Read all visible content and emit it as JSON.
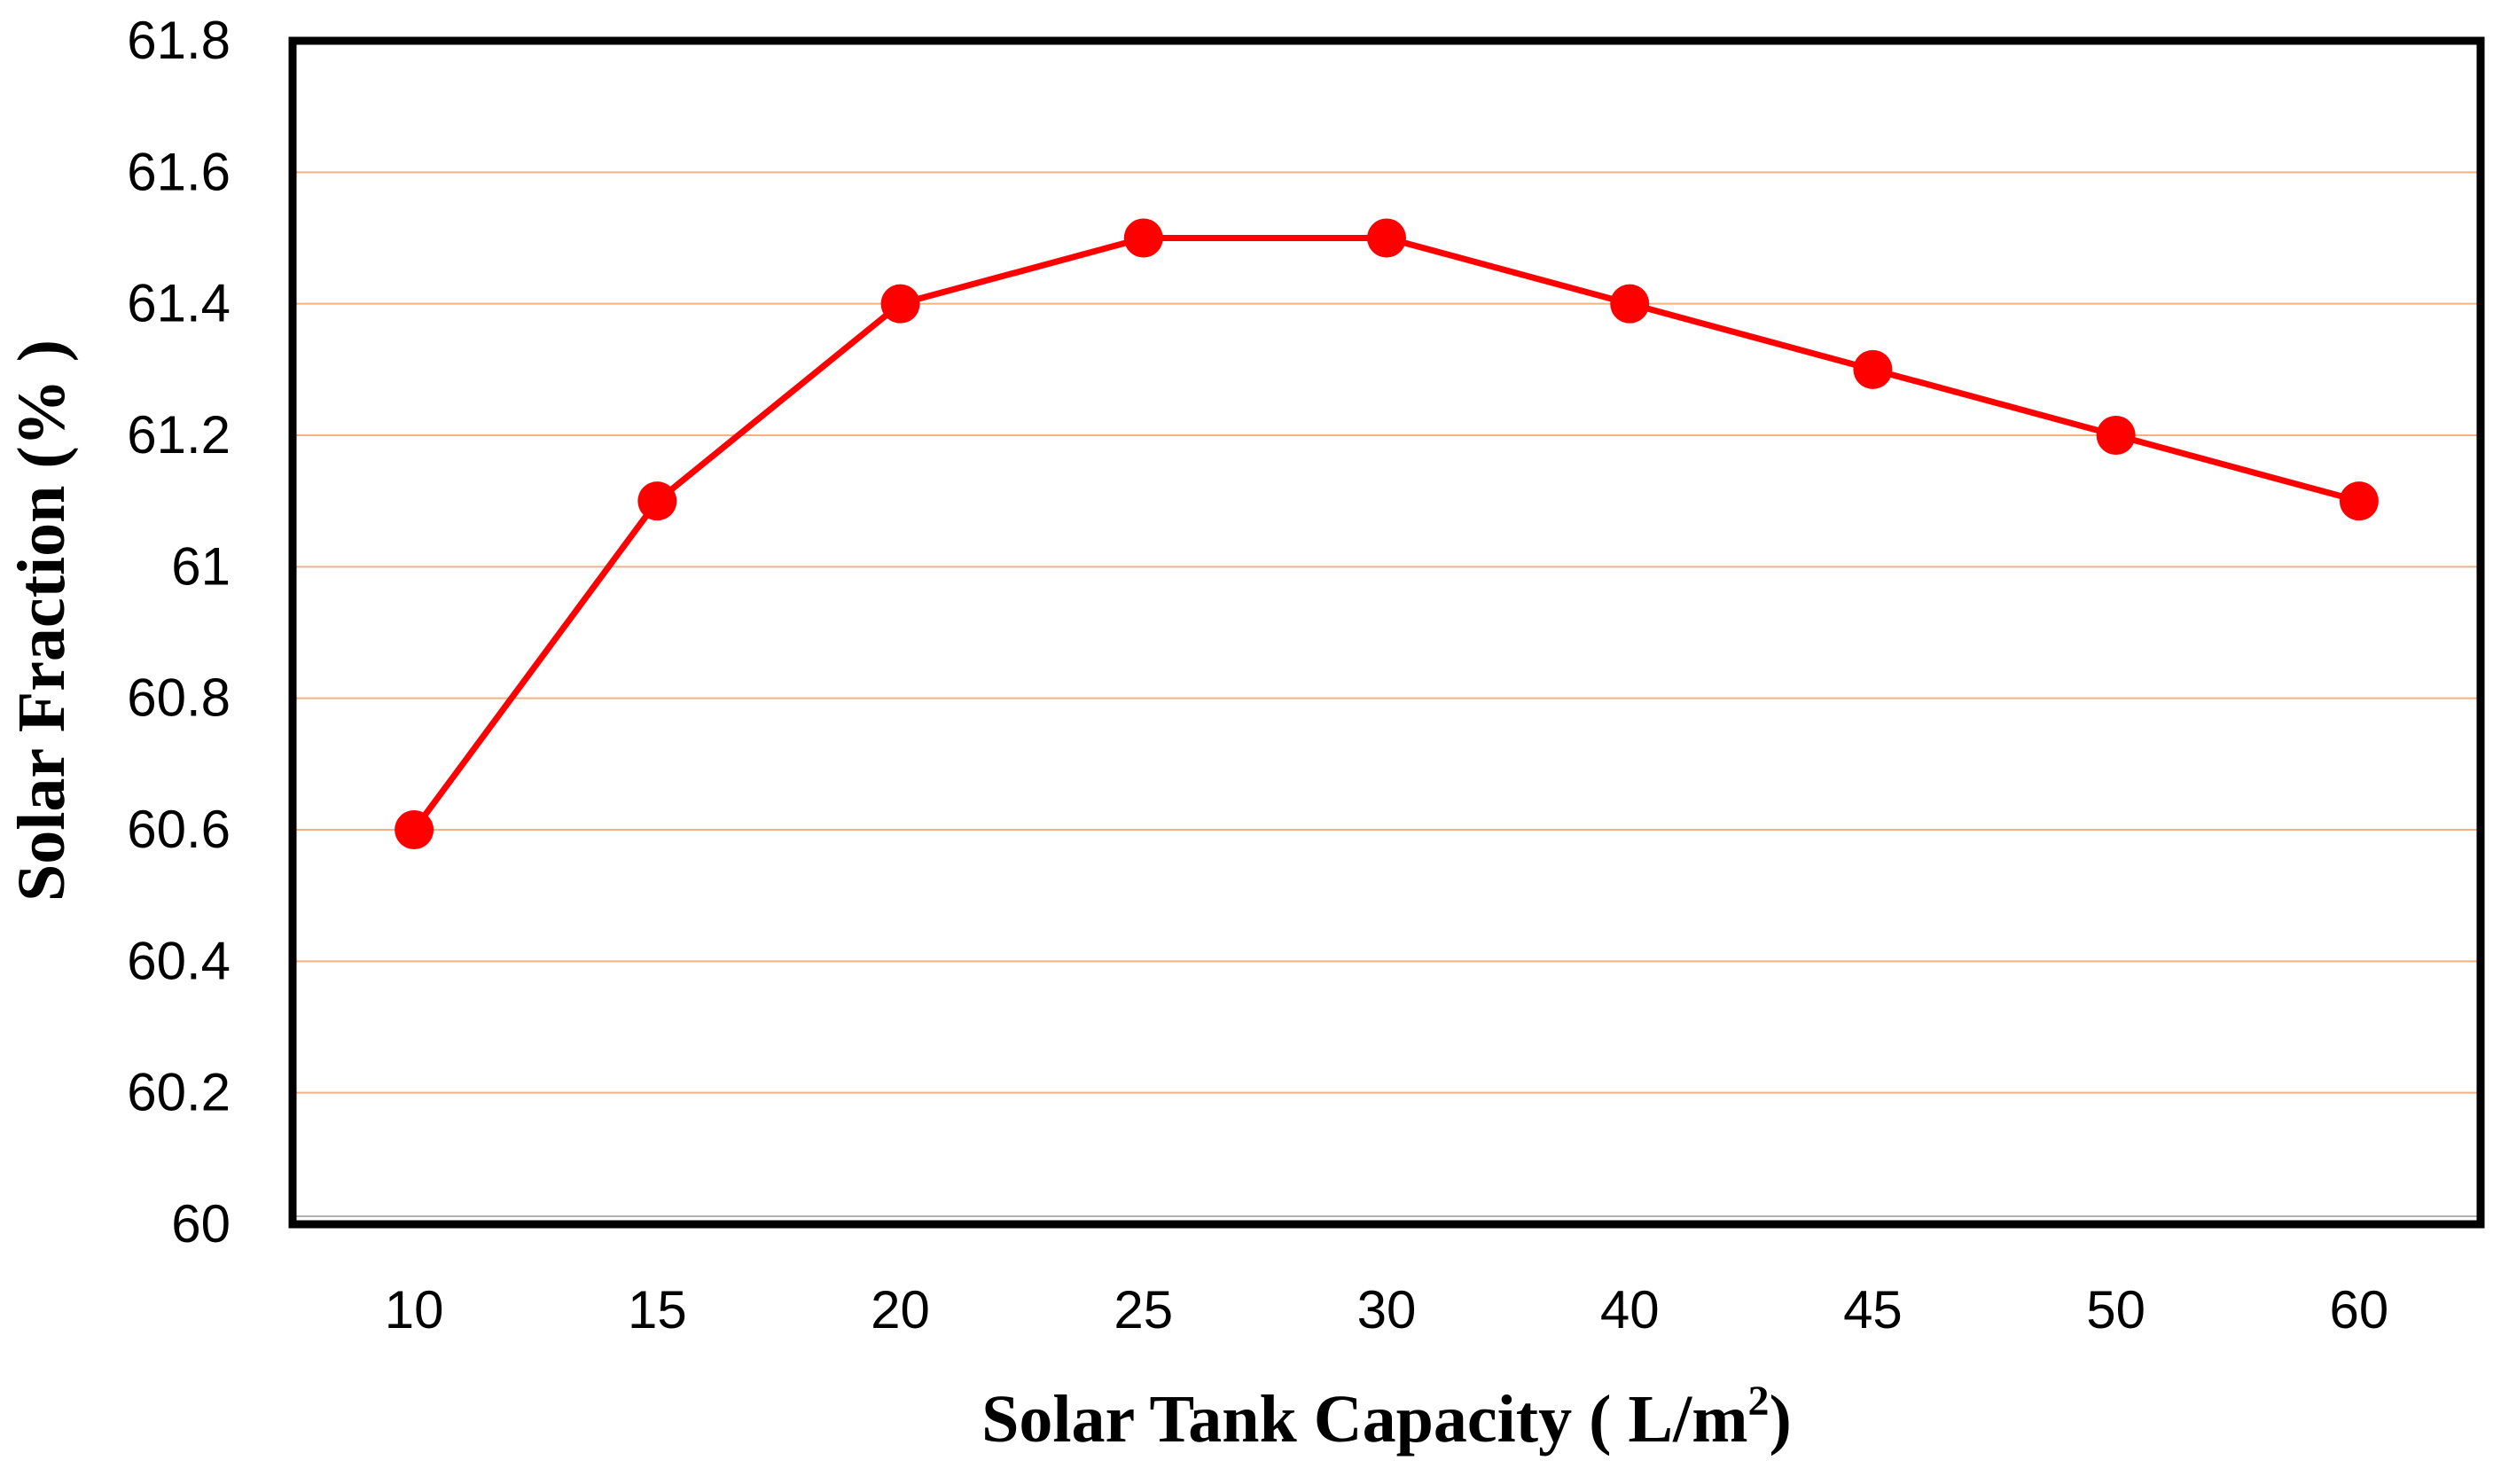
{
  "chart_data": {
    "type": "line",
    "title": "",
    "xlabel": "Solar Tank Capacity ( L/m",
    "xlabel_superscript": "2",
    "xlabel_suffix": ")",
    "ylabel": "Solar Fraction (% )",
    "categories": [
      "10",
      "15",
      "20",
      "25",
      "30",
      "40",
      "45",
      "50",
      "60"
    ],
    "series": [
      {
        "name": "Solar Fraction",
        "values": [
          60.6,
          61.1,
          61.4,
          61.5,
          61.5,
          61.4,
          61.3,
          61.2,
          61.1
        ],
        "color": "#ff0000"
      }
    ],
    "ylim": [
      60,
      61.8
    ],
    "yticks": [
      60,
      60.2,
      60.4,
      60.6,
      60.8,
      61,
      61.2,
      61.4,
      61.6,
      61.8
    ],
    "ytick_labels": [
      "60",
      "60.2",
      "60.4",
      "60.6",
      "60.8",
      "61",
      "61.2",
      "61.4",
      "61.6",
      "61.8"
    ],
    "grid": true,
    "grid_color": "#f4b183",
    "marker": "circle",
    "legend": "none"
  }
}
